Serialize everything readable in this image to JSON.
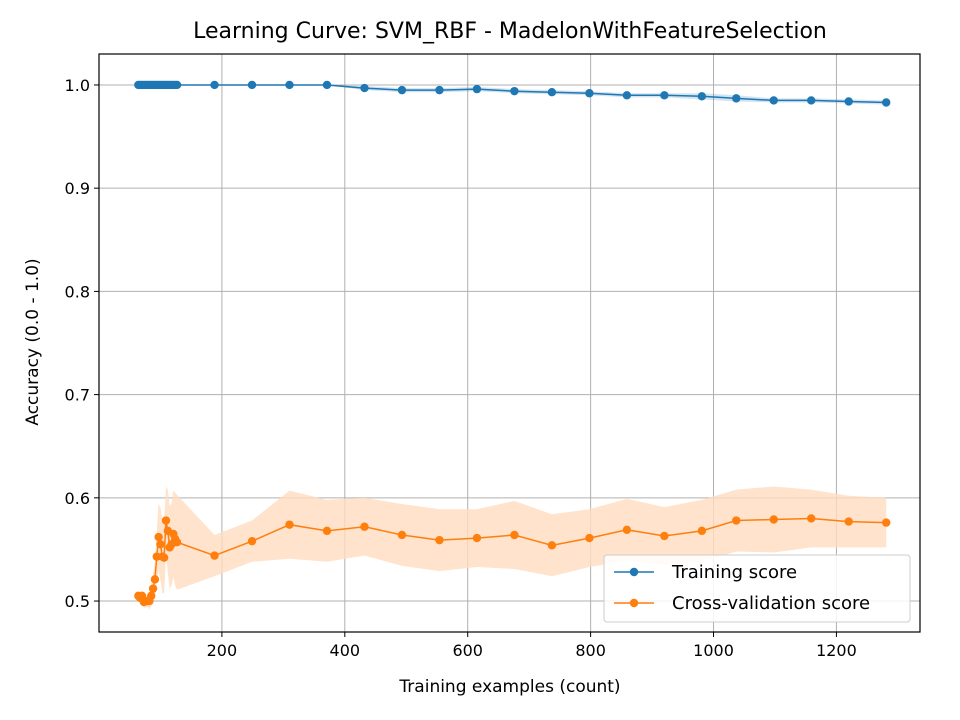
{
  "chart_data": {
    "type": "line",
    "title": "Learning Curve: SVM_RBF - MadelonWithFeatureSelection",
    "xlabel": "Training examples (count)",
    "ylabel": "Accuracy (0.0 - 1.0)",
    "xlim": [
      0,
      1336
    ],
    "ylim": [
      0.47,
      1.03
    ],
    "xticks": [
      200,
      400,
      600,
      800,
      1000,
      1200
    ],
    "yticks": [
      0.5,
      0.6,
      0.7,
      0.8,
      0.9,
      1.0
    ],
    "grid": true,
    "legend_position": "lower-right",
    "x": [
      64,
      67,
      70,
      73,
      76,
      79,
      82,
      85,
      88,
      91,
      94,
      97,
      100,
      103,
      106,
      109,
      112,
      115,
      118,
      121,
      124,
      127,
      188,
      249,
      310,
      371,
      432,
      493,
      554,
      615,
      676,
      737,
      798,
      859,
      920,
      981,
      1037,
      1098,
      1159,
      1220,
      1281
    ],
    "series": [
      {
        "name": "Training score",
        "color": "#1f77b4",
        "fill": "#1f77b4",
        "values": [
          1.0,
          1.0,
          1.0,
          1.0,
          1.0,
          1.0,
          1.0,
          1.0,
          1.0,
          1.0,
          1.0,
          1.0,
          1.0,
          1.0,
          1.0,
          1.0,
          1.0,
          1.0,
          1.0,
          1.0,
          1.0,
          1.0,
          1.0,
          1.0,
          1.0,
          1.0,
          0.997,
          0.995,
          0.995,
          0.996,
          0.994,
          0.993,
          0.992,
          0.99,
          0.99,
          0.989,
          0.987,
          0.985,
          0.985,
          0.984,
          0.983
        ],
        "std": [
          0,
          0,
          0,
          0,
          0,
          0,
          0,
          0,
          0,
          0,
          0,
          0,
          0,
          0,
          0,
          0,
          0,
          0,
          0,
          0,
          0,
          0,
          0,
          0,
          0,
          0,
          0.002,
          0.002,
          0.002,
          0.002,
          0.002,
          0.002,
          0.002,
          0.002,
          0.002,
          0.003,
          0.003,
          0.002,
          0.002,
          0.002,
          0.002
        ]
      },
      {
        "name": "Cross-validation score",
        "color": "#ff7f0e",
        "fill": "#ffdcbf",
        "values": [
          0.505,
          0.503,
          0.505,
          0.499,
          0.5,
          0.5,
          0.5,
          0.505,
          0.512,
          0.521,
          0.543,
          0.562,
          0.555,
          0.543,
          0.542,
          0.578,
          0.568,
          0.552,
          0.555,
          0.565,
          0.56,
          0.557,
          0.544,
          0.558,
          0.574,
          0.568,
          0.572,
          0.564,
          0.559,
          0.561,
          0.564,
          0.554,
          0.561,
          0.569,
          0.563,
          0.568,
          0.578,
          0.579,
          0.58,
          0.577,
          0.576
        ],
        "std": [
          0.004,
          0.004,
          0.005,
          0.006,
          0.006,
          0.006,
          0.008,
          0.01,
          0.014,
          0.018,
          0.025,
          0.033,
          0.035,
          0.035,
          0.035,
          0.033,
          0.04,
          0.04,
          0.04,
          0.042,
          0.045,
          0.046,
          0.02,
          0.02,
          0.033,
          0.03,
          0.028,
          0.03,
          0.03,
          0.028,
          0.033,
          0.03,
          0.028,
          0.03,
          0.028,
          0.03,
          0.03,
          0.032,
          0.028,
          0.025,
          0.024
        ]
      }
    ]
  }
}
